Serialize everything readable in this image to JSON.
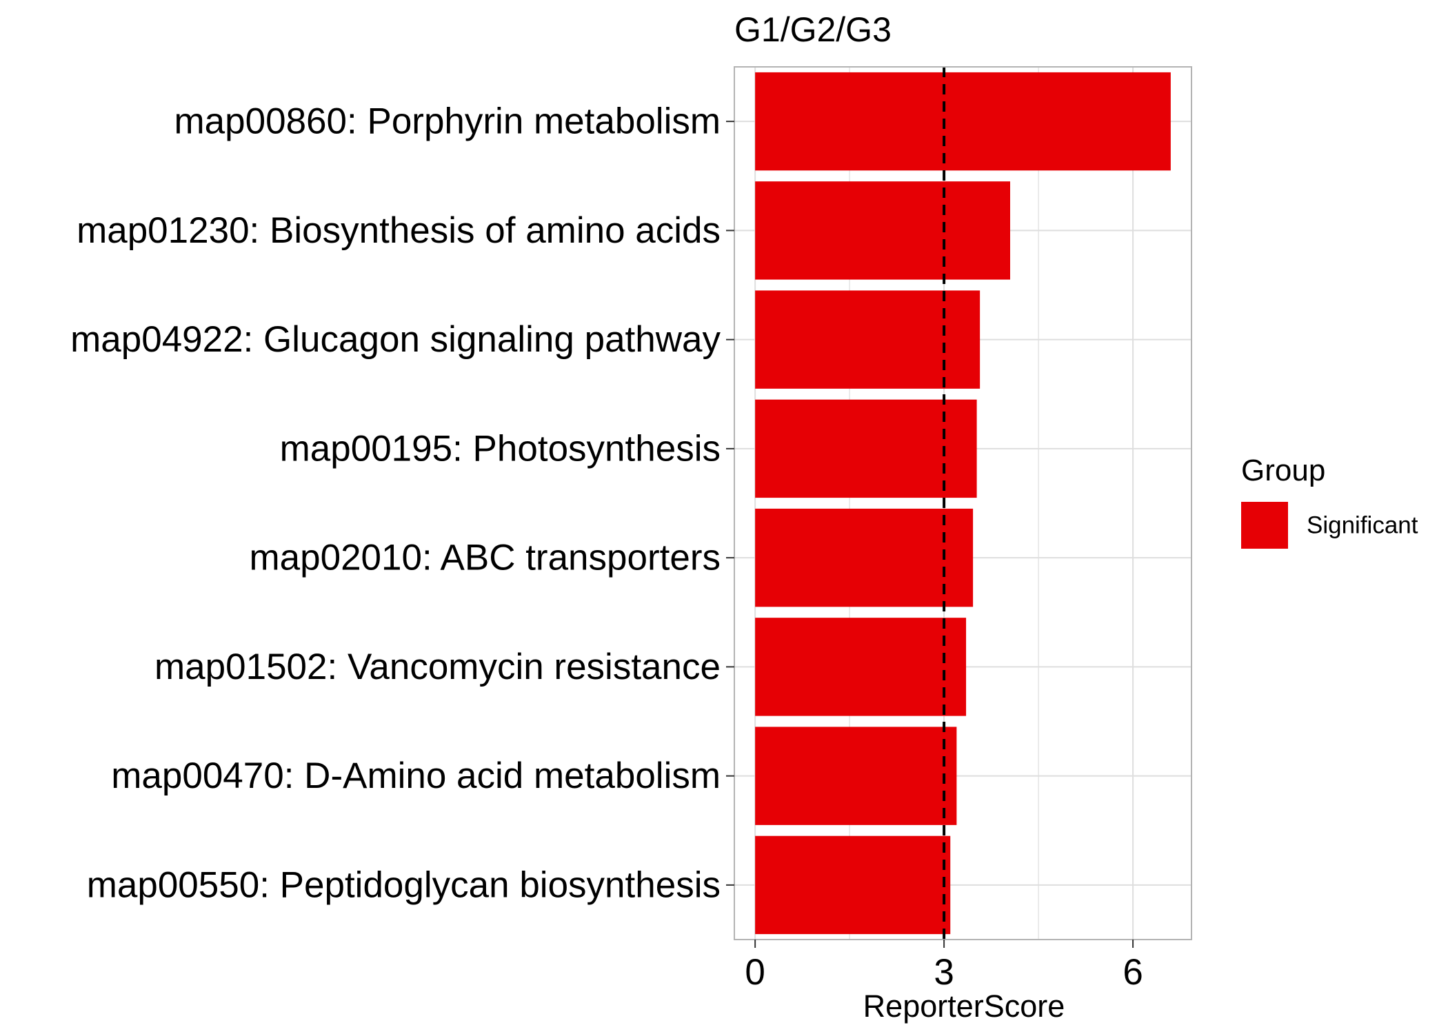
{
  "chart_data": {
    "type": "bar",
    "orientation": "horizontal",
    "title": "G1/G2/G3",
    "xlabel": "ReporterScore",
    "ylabel": "",
    "categories": [
      "map00860: Porphyrin metabolism",
      "map01230: Biosynthesis of amino acids",
      "map04922: Glucagon signaling pathway",
      "map00195: Photosynthesis",
      "map02010: ABC transporters",
      "map01502: Vancomycin resistance",
      "map00470: D-Amino acid metabolism",
      "map00550: Peptidoglycan biosynthesis"
    ],
    "values": [
      6.6,
      4.05,
      3.57,
      3.52,
      3.46,
      3.35,
      3.2,
      3.1
    ],
    "groups": [
      "Significant",
      "Significant",
      "Significant",
      "Significant",
      "Significant",
      "Significant",
      "Significant",
      "Significant"
    ],
    "xlim": [
      -0.33,
      6.93
    ],
    "xticks": [
      0,
      3,
      6
    ],
    "xtick_labels": [
      "0",
      "3",
      "6"
    ],
    "reference_line": {
      "x": 3,
      "style": "dashed",
      "color": "#000000"
    },
    "grid": true,
    "legend": {
      "title": "Group",
      "placement": "right",
      "entries": [
        {
          "label": "Significant",
          "color": "#E60005"
        }
      ]
    },
    "colors": {
      "Significant": "#E60005",
      "panel_border": "#B3B3B3",
      "grid": "#DEDEDE"
    }
  }
}
